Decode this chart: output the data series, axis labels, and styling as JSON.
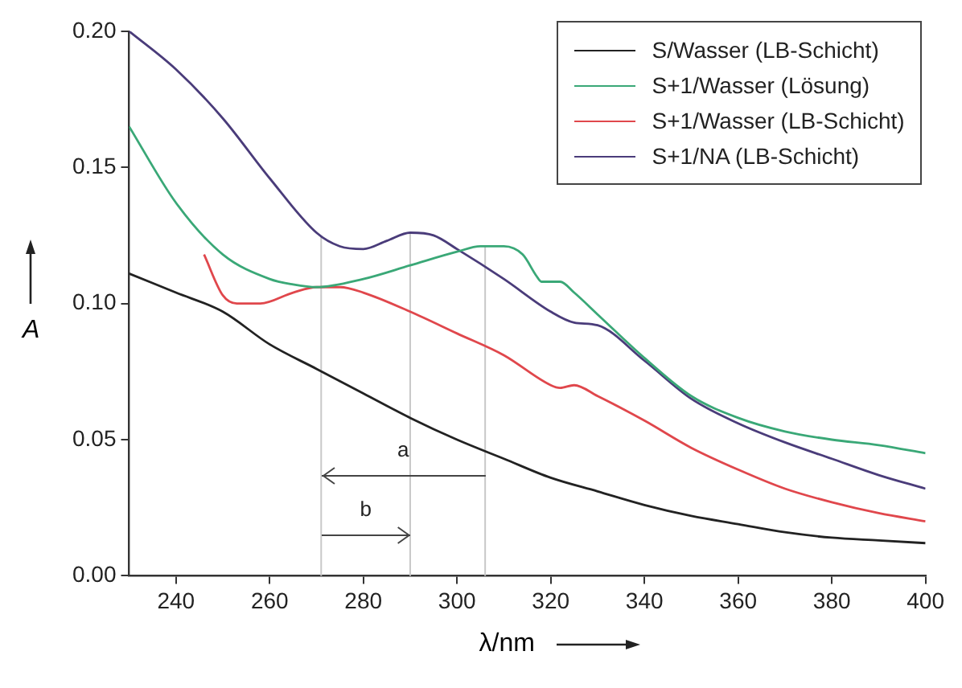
{
  "chart_data": {
    "type": "line",
    "xlabel": "λ/nm",
    "ylabel": "A",
    "xlim": [
      230,
      400
    ],
    "xticks": [
      240,
      260,
      280,
      300,
      320,
      340,
      360,
      380,
      400
    ],
    "ylim": [
      0,
      0.2
    ],
    "yticks": [
      {
        "value": 0,
        "label": "0.00"
      },
      0.05,
      {
        "value": 0.1,
        "label": "0.10"
      },
      0.15,
      {
        "value": 0.2,
        "label": "0.20"
      }
    ],
    "grid": false,
    "legend": "top right",
    "marker": "none",
    "line_style": "solid",
    "series": [
      {
        "name": "S/Wasser (LB-Schicht)",
        "color": "#222222",
        "x": [
          230,
          240,
          250,
          260,
          270,
          280,
          290,
          300,
          310,
          320,
          330,
          340,
          350,
          360,
          370,
          380,
          390,
          400
        ],
        "values": [
          0.111,
          0.104,
          0.097,
          0.085,
          0.076,
          0.067,
          0.058,
          0.05,
          0.043,
          0.036,
          0.031,
          0.026,
          0.022,
          0.019,
          0.016,
          0.014,
          0.013,
          0.012
        ]
      },
      {
        "name": "S+1/Wasser (Lösung)",
        "color": "#3aa877",
        "x": [
          230,
          240,
          250,
          260,
          265,
          270,
          280,
          290,
          300,
          305,
          310,
          314,
          317,
          318,
          322,
          325,
          330,
          340,
          350,
          360,
          370,
          380,
          390,
          400
        ],
        "values": [
          0.165,
          0.137,
          0.118,
          0.109,
          0.107,
          0.106,
          0.109,
          0.114,
          0.119,
          0.121,
          0.121,
          0.118,
          0.11,
          0.108,
          0.108,
          0.104,
          0.096,
          0.08,
          0.066,
          0.058,
          0.053,
          0.05,
          0.048,
          0.045
        ]
      },
      {
        "name": "S+1/Wasser (LB-Schicht)",
        "color": "#e0474c",
        "x": [
          246,
          250,
          253,
          258,
          265,
          270,
          275,
          280,
          290,
          300,
          310,
          320,
          322,
          325,
          330,
          340,
          350,
          360,
          370,
          380,
          390,
          400
        ],
        "values": [
          0.118,
          0.103,
          0.1,
          0.1,
          0.104,
          0.106,
          0.106,
          0.104,
          0.097,
          0.089,
          0.081,
          0.07,
          0.069,
          0.07,
          0.066,
          0.057,
          0.047,
          0.039,
          0.032,
          0.027,
          0.023,
          0.02
        ]
      },
      {
        "name": "S+1/NA (LB-Schicht)",
        "color": "#4a3c7a",
        "x": [
          230,
          240,
          250,
          260,
          270,
          275,
          280,
          285,
          290,
          295,
          300,
          310,
          320,
          325,
          330,
          340,
          350,
          360,
          370,
          380,
          390,
          400
        ],
        "values": [
          0.2,
          0.186,
          0.168,
          0.146,
          0.126,
          0.121,
          0.12,
          0.123,
          0.126,
          0.125,
          0.12,
          0.109,
          0.097,
          0.093,
          0.092,
          0.079,
          0.065,
          0.056,
          0.049,
          0.043,
          0.037,
          0.032
        ]
      }
    ],
    "ref_lines": [
      {
        "axis": "x",
        "value": 271,
        "color": "#c8c8c8"
      },
      {
        "axis": "x",
        "value": 290,
        "color": "#c8c8c8"
      },
      {
        "axis": "x",
        "value": 306,
        "color": "#c8c8c8"
      }
    ],
    "annotations": [
      "a",
      "b"
    ]
  }
}
